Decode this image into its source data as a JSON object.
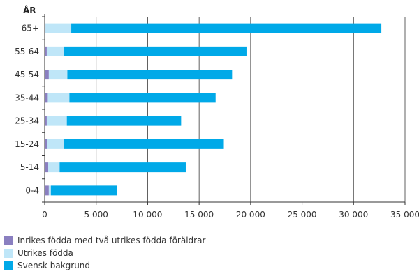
{
  "chart_data": {
    "type": "bar",
    "orientation": "horizontal",
    "stacked": true,
    "ylabel": "ÅR",
    "categories": [
      "65+",
      "55-64",
      "45-54",
      "35-44",
      "25-34",
      "15-24",
      "5-14",
      "0-4"
    ],
    "series": [
      {
        "name": "Inrikes födda med två utrikes födda föräldrar",
        "color": "#8a7fc0",
        "values": [
          80,
          200,
          400,
          300,
          200,
          250,
          350,
          400
        ]
      },
      {
        "name": "Utrikes födda",
        "color": "#bfe6f8",
        "values": [
          2500,
          1650,
          1800,
          2100,
          1950,
          1600,
          1100,
          200
        ]
      },
      {
        "name": "Svensk bakgrund",
        "color": "#00a9e8",
        "values": [
          30120,
          17750,
          16000,
          14200,
          11100,
          15550,
          12250,
          6400
        ]
      }
    ],
    "xlim": [
      0,
      35000
    ],
    "xticks": [
      0,
      5000,
      10000,
      15000,
      20000,
      25000,
      30000,
      35000
    ],
    "xtick_labels": [
      "0",
      "5 000",
      "10 000",
      "15 000",
      "20 000",
      "25 000",
      "30 000",
      "35 000"
    ],
    "grid": "vertical",
    "legend_position": "bottom-left"
  }
}
